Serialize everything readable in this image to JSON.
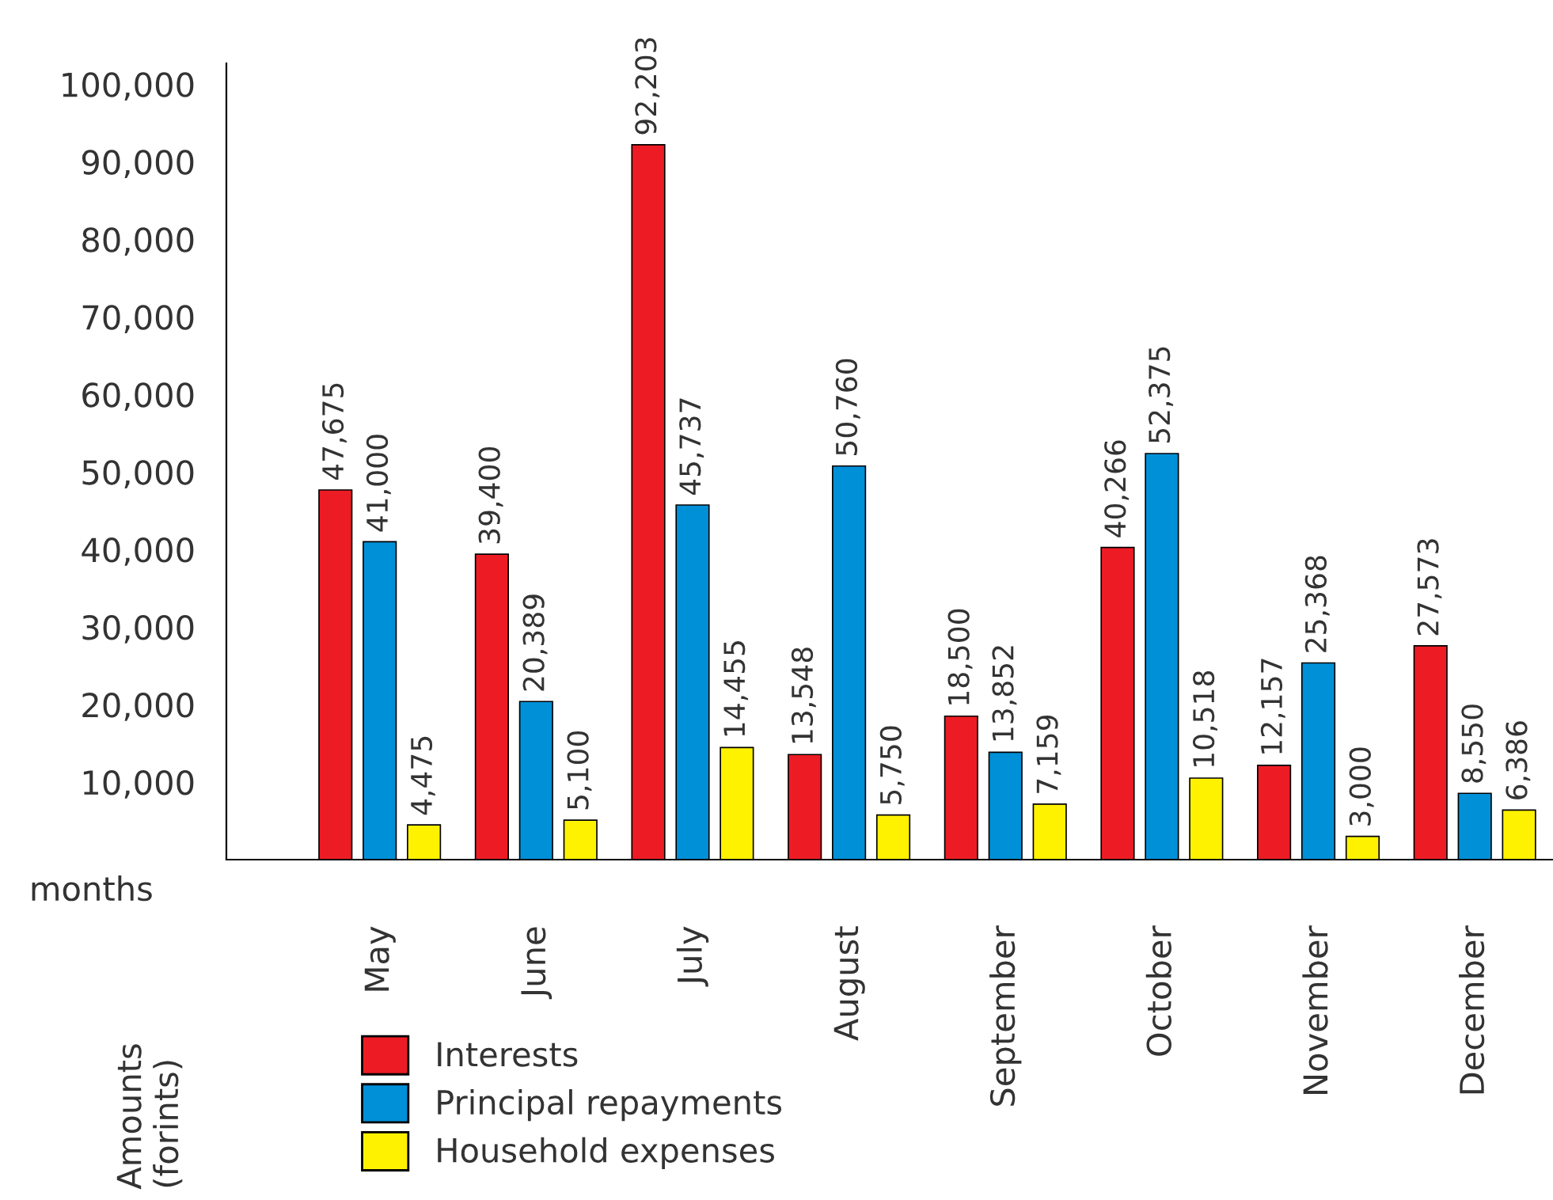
{
  "chart_data": {
    "type": "bar",
    "xlabel": "months",
    "ylabel": "Amounts\n(forints)",
    "categories": [
      "May",
      "June",
      "July",
      "August",
      "September",
      "October",
      "November",
      "December"
    ],
    "series": [
      {
        "name": "Interests",
        "color": "#ed1c24",
        "values": [
          47675,
          39400,
          92203,
          13548,
          18500,
          40266,
          12157,
          27573
        ],
        "value_labels": [
          "47,675",
          "39,400",
          "92,203",
          "13,548",
          "18,500",
          "40,266",
          "12,157",
          "27,573"
        ]
      },
      {
        "name": "Principal repayments",
        "color": "#0090d8",
        "values": [
          41000,
          20389,
          45737,
          50760,
          13852,
          52375,
          25368,
          8550
        ],
        "value_labels": [
          "41,000",
          "20,389",
          "45,737",
          "50,760",
          "13,852",
          "52,375",
          "25,368",
          "8,550"
        ]
      },
      {
        "name": "Household expenses",
        "color": "#fff200",
        "values": [
          4475,
          5100,
          14455,
          5750,
          7159,
          10518,
          3000,
          6386
        ],
        "value_labels": [
          "4,475",
          "5,100",
          "14,455",
          "5,750",
          "7,159",
          "10,518",
          "3,000",
          "6,386"
        ]
      }
    ],
    "ylim": [
      0,
      102700
    ],
    "yticks": [
      {
        "value": 10000,
        "label": "10,000"
      },
      {
        "value": 20000,
        "label": "20,000"
      },
      {
        "value": 30000,
        "label": "30,000"
      },
      {
        "value": 40000,
        "label": "40,000"
      },
      {
        "value": 50000,
        "label": "50,000"
      },
      {
        "value": 60000,
        "label": "60,000"
      },
      {
        "value": 70000,
        "label": "70,000"
      },
      {
        "value": 80000,
        "label": "80,000"
      },
      {
        "value": 90000,
        "label": "90,000"
      },
      {
        "value": 100000,
        "label": "100,000"
      }
    ],
    "grid": false,
    "legend": "bottom"
  }
}
